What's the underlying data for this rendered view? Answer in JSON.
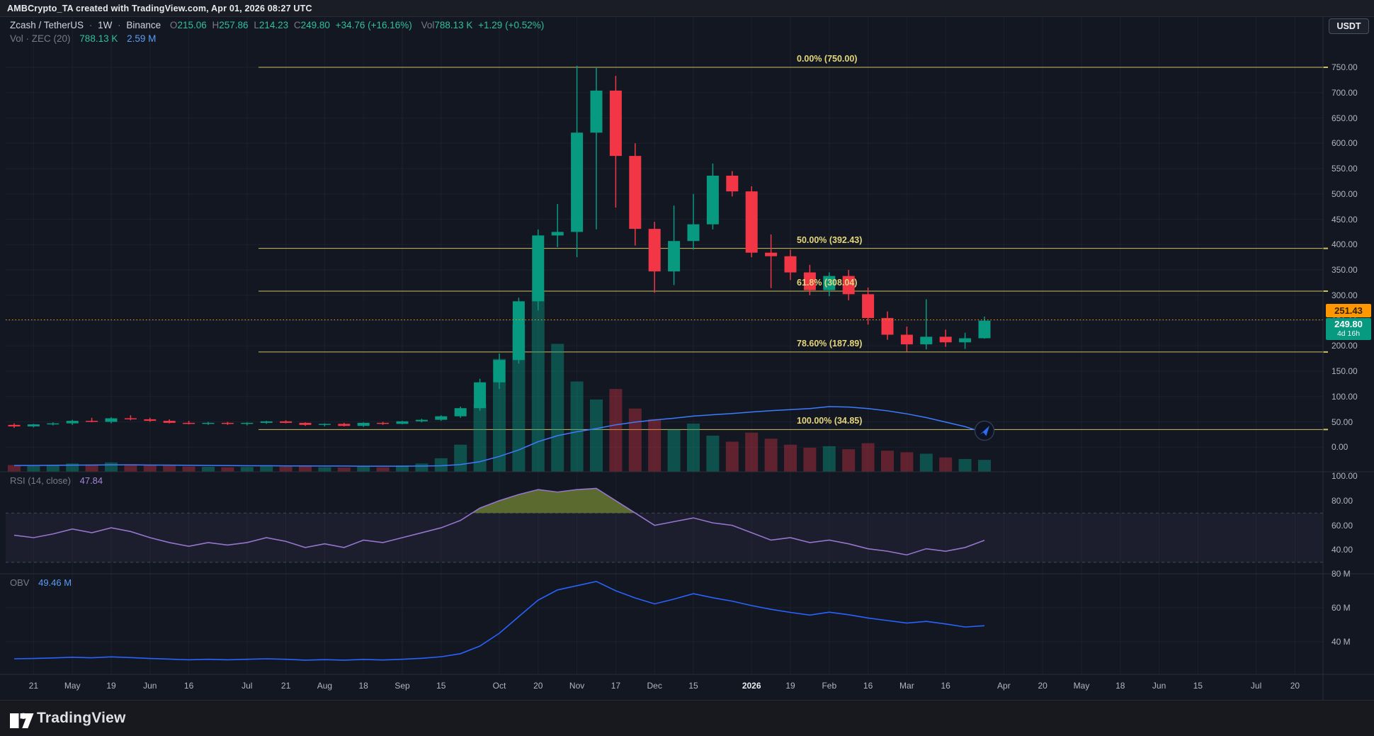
{
  "header": {
    "title": "AMBCrypto_TA created with TradingView.com, Apr 01, 2026 08:27 UTC"
  },
  "toolbar": {
    "currency_button": "USDT"
  },
  "legend": {
    "symbol": "Zcash / TetherUS",
    "sep": "·",
    "interval": "1W",
    "exchange": "Binance",
    "o_label": "O",
    "o_value": "215.06",
    "h_label": "H",
    "h_value": "257.86",
    "l_label": "L",
    "l_value": "214.23",
    "c_label": "C",
    "c_value": "249.80",
    "change": "+34.76 (+16.16%)",
    "vol_label": "Vol",
    "vol_value": "788.13 K",
    "vol_change": "+1.29 (+0.52%)"
  },
  "vol_legend": {
    "name": "Vol · ZEC (20)",
    "value": "788.13 K",
    "ma_value": "2.59 M"
  },
  "rsi_legend": {
    "name": "RSI (14, close)",
    "value": "47.84"
  },
  "obv_legend": {
    "name": "OBV",
    "value": "49.46 M"
  },
  "price_axis": {
    "labels": [
      {
        "t": "750.00",
        "p": 750
      },
      {
        "t": "700.00",
        "p": 700
      },
      {
        "t": "650.00",
        "p": 650
      },
      {
        "t": "600.00",
        "p": 600
      },
      {
        "t": "550.00",
        "p": 550
      },
      {
        "t": "500.00",
        "p": 500
      },
      {
        "t": "450.00",
        "p": 450
      },
      {
        "t": "400.00",
        "p": 400
      },
      {
        "t": "350.00",
        "p": 350
      },
      {
        "t": "300.00",
        "p": 300
      },
      {
        "t": "250.00",
        "p": 250
      },
      {
        "t": "200.00",
        "p": 200
      },
      {
        "t": "150.00",
        "p": 150
      },
      {
        "t": "100.00",
        "p": 100
      },
      {
        "t": "50.00",
        "p": 50
      },
      {
        "t": "0.00",
        "p": 0
      }
    ],
    "alert_badge": "251.43",
    "current_badge": "249.80",
    "countdown": "4d 16h"
  },
  "rsi_axis": [
    {
      "t": "100.00",
      "v": 100
    },
    {
      "t": "80.00",
      "v": 80
    },
    {
      "t": "60.00",
      "v": 60
    },
    {
      "t": "40.00",
      "v": 40
    }
  ],
  "obv_axis": [
    {
      "t": "80 M",
      "v": 80
    },
    {
      "t": "60 M",
      "v": 60
    },
    {
      "t": "40 M",
      "v": 40
    }
  ],
  "time_axis": [
    {
      "t": "21",
      "i": 1
    },
    {
      "t": "May",
      "i": 3
    },
    {
      "t": "19",
      "i": 5
    },
    {
      "t": "Jun",
      "i": 7
    },
    {
      "t": "16",
      "i": 9
    },
    {
      "t": "Jul",
      "i": 12
    },
    {
      "t": "21",
      "i": 14
    },
    {
      "t": "Aug",
      "i": 16
    },
    {
      "t": "18",
      "i": 18
    },
    {
      "t": "Sep",
      "i": 20
    },
    {
      "t": "15",
      "i": 22
    },
    {
      "t": "Oct",
      "i": 25
    },
    {
      "t": "20",
      "i": 27
    },
    {
      "t": "Nov",
      "i": 29
    },
    {
      "t": "17",
      "i": 31
    },
    {
      "t": "Dec",
      "i": 33
    },
    {
      "t": "15",
      "i": 35
    },
    {
      "t": "2026",
      "i": 38,
      "strong": true
    },
    {
      "t": "19",
      "i": 40
    },
    {
      "t": "Feb",
      "i": 42
    },
    {
      "t": "16",
      "i": 44
    },
    {
      "t": "Mar",
      "i": 46
    },
    {
      "t": "16",
      "i": 48
    },
    {
      "t": "Apr",
      "i": 51
    },
    {
      "t": "20",
      "i": 53
    },
    {
      "t": "May",
      "i": 55
    },
    {
      "t": "18",
      "i": 57
    },
    {
      "t": "Jun",
      "i": 59
    },
    {
      "t": "15",
      "i": 61
    },
    {
      "t": "Jul",
      "i": 64
    },
    {
      "t": "20",
      "i": 66
    }
  ],
  "footer": {
    "brand": "TradingView"
  },
  "colors": {
    "up": "#089981",
    "down": "#f23645",
    "fib": "#cdbf63",
    "fib_label": "#e5d77b",
    "alert": "#ff9800",
    "rsi_line": "#9575cd",
    "rsi_overbought_fill": "#5f7030",
    "obv_line": "#2962ff",
    "volume_ma": "#3d7bff",
    "grid": "rgba(134,143,160,0.08)",
    "separator": "#2a2e39",
    "axis_text": "#b2b5be"
  },
  "chart_data": {
    "type": "candlestick",
    "title": "Zcash / TetherUS · 1W · Binance",
    "interval": "weekly",
    "x_dates": [
      "Apr 14 2025",
      "Apr 21 2025",
      "Apr 28 2025",
      "May 5 2025",
      "May 12 2025",
      "May 19 2025",
      "May 26 2025",
      "Jun 2 2025",
      "Jun 9 2025",
      "Jun 16 2025",
      "Jun 23 2025",
      "Jun 30 2025",
      "Jul 7 2025",
      "Jul 14 2025",
      "Jul 21 2025",
      "Jul 28 2025",
      "Aug 4 2025",
      "Aug 11 2025",
      "Aug 18 2025",
      "Aug 25 2025",
      "Sep 1 2025",
      "Sep 8 2025",
      "Sep 15 2025",
      "Sep 22 2025",
      "Sep 29 2025",
      "Oct 6 2025",
      "Oct 13 2025",
      "Oct 20 2025",
      "Oct 27 2025",
      "Nov 3 2025",
      "Nov 10 2025",
      "Nov 17 2025",
      "Nov 24 2025",
      "Dec 1 2025",
      "Dec 8 2025",
      "Dec 15 2025",
      "Dec 22 2025",
      "Dec 29 2025",
      "Jan 5 2026",
      "Jan 12 2026",
      "Jan 19 2026",
      "Jan 26 2026",
      "Feb 2 2026",
      "Feb 9 2026",
      "Feb 16 2026",
      "Feb 23 2026",
      "Mar 2 2026",
      "Mar 9 2026",
      "Mar 16 2026",
      "Mar 23 2026",
      "Mar 30 2026"
    ],
    "open": [
      44,
      41,
      45,
      47,
      52,
      50,
      57,
      55,
      52,
      48,
      46,
      48,
      46,
      48,
      51,
      48,
      44,
      46,
      42,
      48,
      46,
      51,
      54,
      61,
      77,
      128,
      172,
      288,
      418,
      425,
      621,
      704,
      575,
      431,
      347,
      407,
      440,
      536,
      505,
      384,
      377,
      345,
      310,
      338,
      302,
      255,
      222,
      203,
      218,
      207,
      215.06
    ],
    "high": [
      47,
      46,
      49,
      54,
      58,
      59,
      63,
      58,
      55,
      52,
      50,
      50,
      49,
      52,
      53,
      49,
      47,
      48,
      49,
      50,
      52,
      56,
      63,
      80,
      135,
      185,
      295,
      430,
      480,
      753,
      750,
      733,
      600,
      445,
      477,
      500,
      560,
      545,
      515,
      420,
      390,
      360,
      345,
      350,
      315,
      268,
      238,
      292,
      232,
      226,
      257.86
    ],
    "low": [
      38,
      39,
      43,
      44,
      49,
      47,
      53,
      50,
      47,
      45,
      44,
      44,
      43,
      46,
      47,
      42,
      41,
      41,
      40,
      44,
      45,
      49,
      52,
      58,
      72,
      115,
      165,
      270,
      395,
      375,
      430,
      473,
      398,
      305,
      320,
      390,
      430,
      495,
      375,
      314,
      330,
      300,
      298,
      290,
      242,
      212,
      188,
      193,
      198,
      194,
      214.23
    ],
    "close": [
      41,
      45,
      47,
      52,
      50,
      57,
      55,
      52,
      48,
      46,
      48,
      46,
      48,
      51,
      48,
      44,
      46,
      42,
      48,
      46,
      51,
      54,
      61,
      77,
      128,
      172,
      288,
      418,
      425,
      621,
      704,
      575,
      431,
      347,
      407,
      440,
      536,
      505,
      384,
      377,
      345,
      310,
      338,
      302,
      255,
      222,
      203,
      218,
      207,
      215,
      249.8
    ],
    "volume_m": [
      0.45,
      0.38,
      0.42,
      0.55,
      0.48,
      0.62,
      0.5,
      0.44,
      0.4,
      0.35,
      0.33,
      0.3,
      0.32,
      0.36,
      0.34,
      0.38,
      0.3,
      0.28,
      0.35,
      0.3,
      0.42,
      0.55,
      0.9,
      1.8,
      4.5,
      7.5,
      9.8,
      12.0,
      8.5,
      6.0,
      4.8,
      5.5,
      4.2,
      3.5,
      2.8,
      3.2,
      2.4,
      2.0,
      2.6,
      2.2,
      1.8,
      1.6,
      1.7,
      1.5,
      1.9,
      1.4,
      1.3,
      1.2,
      0.95,
      0.85,
      0.79
    ],
    "volume_ma20_m": [
      0.42,
      0.42,
      0.43,
      0.44,
      0.45,
      0.46,
      0.46,
      0.45,
      0.44,
      0.43,
      0.42,
      0.41,
      0.4,
      0.4,
      0.39,
      0.39,
      0.38,
      0.38,
      0.37,
      0.37,
      0.37,
      0.38,
      0.4,
      0.48,
      0.67,
      1.02,
      1.45,
      2.0,
      2.4,
      2.66,
      2.87,
      3.12,
      3.3,
      3.44,
      3.56,
      3.7,
      3.79,
      3.87,
      3.97,
      4.06,
      4.13,
      4.2,
      4.33,
      4.3,
      4.2,
      4.05,
      3.85,
      3.6,
      3.3,
      3.0,
      2.59
    ],
    "rsi14": [
      52,
      50,
      53,
      57,
      54,
      58,
      55,
      50,
      46,
      43,
      46,
      44,
      46,
      50,
      47,
      42,
      45,
      42,
      48,
      46,
      50,
      54,
      58,
      64,
      74,
      80,
      85,
      89,
      87,
      89,
      90,
      80,
      70,
      60,
      63,
      66,
      62,
      60,
      54,
      48,
      50,
      46,
      48,
      45,
      41,
      39,
      36,
      41,
      39,
      42,
      47.84
    ],
    "obv_m": [
      30,
      30.2,
      30.5,
      30.9,
      30.6,
      31.1,
      30.7,
      30.2,
      29.8,
      29.4,
      29.7,
      29.4,
      29.7,
      30,
      29.7,
      29.2,
      29.5,
      29.2,
      29.6,
      29.3,
      29.7,
      30.3,
      31.2,
      33,
      37.5,
      45,
      54.8,
      64.5,
      70.5,
      73,
      75.5,
      70,
      65.8,
      62.3,
      65.1,
      68.3,
      65.9,
      63.9,
      61.3,
      59.1,
      57.3,
      55.7,
      57.4,
      55.9,
      54,
      52.5,
      51,
      52,
      50.5,
      48.7,
      49.46
    ],
    "fib_levels": [
      {
        "label": "0.00% (750.00)",
        "price": 750.0
      },
      {
        "label": "50.00% (392.43)",
        "price": 392.43
      },
      {
        "label": "61.8% (308.04)",
        "price": 308.04
      },
      {
        "label": "78.60% (187.89)",
        "price": 187.89
      },
      {
        "label": "100.00% (34.85)",
        "price": 34.85
      }
    ],
    "alert_price": 251.43,
    "current_price": 249.8,
    "price_axis_range": [
      0,
      750
    ],
    "rsi_bands": [
      70,
      30
    ],
    "grid": true,
    "legend_position": "top-left"
  }
}
